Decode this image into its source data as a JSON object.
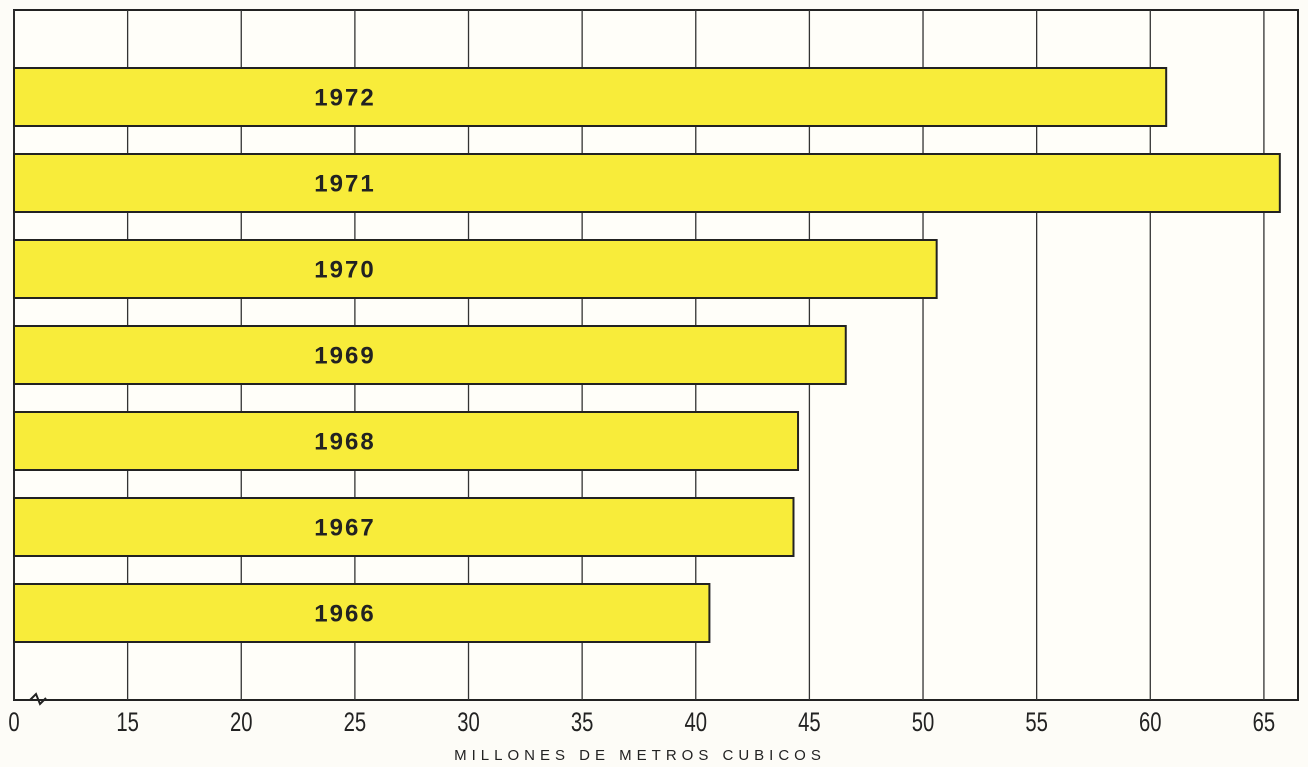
{
  "chart_data": {
    "type": "hbar",
    "x_label": "MILLONES DE METROS CUBICOS",
    "categories": [
      "1972",
      "1971",
      "1970",
      "1969",
      "1968",
      "1967",
      "1966"
    ],
    "values": [
      60.7,
      65.7,
      50.6,
      46.6,
      44.5,
      44.3,
      40.6
    ],
    "color": "#f8ec3a",
    "xlim": [
      10,
      66.5
    ],
    "xticks": [
      {
        "value": 10,
        "label": "0"
      },
      15,
      20,
      25,
      30,
      35,
      40,
      45,
      50,
      55,
      60,
      65
    ],
    "grid": true
  }
}
